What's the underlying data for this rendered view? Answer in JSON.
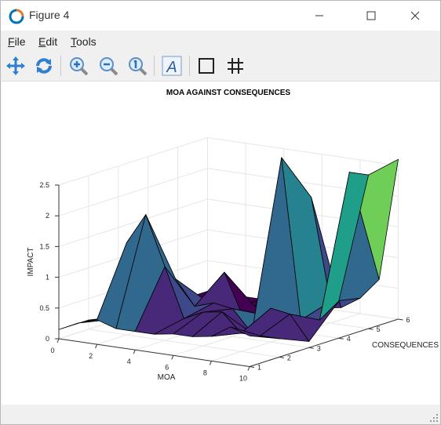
{
  "window": {
    "title": "Figure 4"
  },
  "menu": [
    {
      "pre": "",
      "key": "F",
      "rest": "ile"
    },
    {
      "pre": "",
      "key": "E",
      "rest": "dit"
    },
    {
      "pre": "",
      "key": "T",
      "rest": "ools"
    }
  ],
  "toolbar": [
    "pan-icon",
    "rotate-icon",
    "zoom-in-icon",
    "zoom-out-icon",
    "reset-zoom-icon",
    "text-icon",
    "box-icon",
    "grid-icon"
  ],
  "colors": {
    "accent": "#0078d7",
    "viridis_dark": "#440154",
    "viridis_yellow": "#fde725"
  },
  "chart_data": {
    "type": "surface",
    "title": "MOA AGAINST CONSEQUENCES",
    "xlabel": "MOA",
    "ylabel": "CONSEQUENCES",
    "zlabel": "IMPACT",
    "x_ticks": [
      "0",
      "2",
      "4",
      "6",
      "8",
      "10"
    ],
    "y_ticks": [
      "1",
      "2",
      "3",
      "4",
      "5",
      "6"
    ],
    "z_ticks": [
      "0",
      "0.5",
      "1",
      "1.5",
      "2",
      "2.5"
    ],
    "xlim": [
      0,
      10
    ],
    "ylim": [
      1,
      6
    ],
    "zlim": [
      0,
      2.5
    ],
    "grid": true,
    "colormap": "viridis"
  }
}
